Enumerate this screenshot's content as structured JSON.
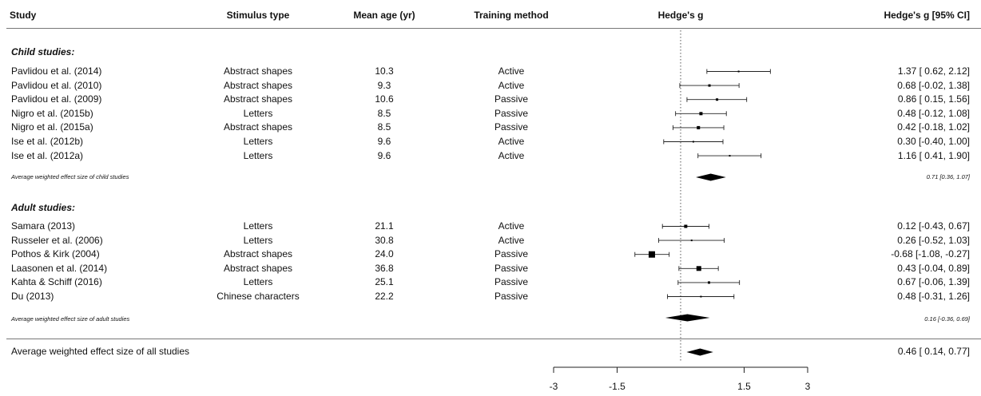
{
  "headers": {
    "study": "Study",
    "stimulus": "Stimulus type",
    "age": "Mean age (yr)",
    "method": "Training method",
    "plot": "Hedge's g",
    "ci": "Hedge's g [95% CI]"
  },
  "child_label": "Child studies:",
  "adult_label": "Adult studies:",
  "child_avg_label": "Average weighted effect size of child studies",
  "child_avg_ci": "0.71 [0.36, 1.07]",
  "adult_avg_label": "Average weighted effect size of adult studies",
  "adult_avg_ci": "0.16 [-0.36, 0.69]",
  "overall_label": "Average weighted effect size of all studies",
  "overall_ci": "0.46 [ 0.14,  0.77]",
  "child_rows": [
    {
      "study": "Pavlidou et al. (2014)",
      "stimulus": "Abstract shapes",
      "age": "10.3",
      "method": "Active",
      "ci": "1.37 [ 0.62,  2.12]"
    },
    {
      "study": "Pavlidou et al. (2010)",
      "stimulus": "Abstract shapes",
      "age": "9.3",
      "method": "Active",
      "ci": "0.68 [-0.02,  1.38]"
    },
    {
      "study": "Pavlidou et al. (2009)",
      "stimulus": "Abstract shapes",
      "age": "10.6",
      "method": "Passive",
      "ci": "0.86 [ 0.15,  1.56]"
    },
    {
      "study": "Nigro et al. (2015b)",
      "stimulus": "Letters",
      "age": "8.5",
      "method": "Passive",
      "ci": "0.48 [-0.12,  1.08]"
    },
    {
      "study": "Nigro et al. (2015a)",
      "stimulus": "Abstract shapes",
      "age": "8.5",
      "method": "Passive",
      "ci": "0.42 [-0.18,  1.02]"
    },
    {
      "study": "Ise et al. (2012b)",
      "stimulus": "Letters",
      "age": "9.6",
      "method": "Active",
      "ci": "0.30 [-0.40,  1.00]"
    },
    {
      "study": "Ise et al. (2012a)",
      "stimulus": "Letters",
      "age": "9.6",
      "method": "Active",
      "ci": "1.16 [ 0.41,  1.90]"
    }
  ],
  "adult_rows": [
    {
      "study": "Samara (2013)",
      "stimulus": "Letters",
      "age": "21.1",
      "method": "Active",
      "ci": "0.12 [-0.43,  0.67]"
    },
    {
      "study": "Russeler et al. (2006)",
      "stimulus": "Letters",
      "age": "30.8",
      "method": "Active",
      "ci": "0.26 [-0.52,  1.03]"
    },
    {
      "study": "Pothos & Kirk (2004)",
      "stimulus": "Abstract shapes",
      "age": "24.0",
      "method": "Passive",
      "ci": "-0.68 [-1.08, -0.27]"
    },
    {
      "study": "Laasonen et al. (2014)",
      "stimulus": "Abstract shapes",
      "age": "36.8",
      "method": "Passive",
      "ci": "0.43 [-0.04,  0.89]"
    },
    {
      "study": "Kahta & Schiff (2016)",
      "stimulus": "Letters",
      "age": "25.1",
      "method": "Passive",
      "ci": "0.67 [-0.06,  1.39]"
    },
    {
      "study": "Du (2013)",
      "stimulus": "Chinese characters",
      "age": "22.2",
      "method": "Passive",
      "ci": "0.48 [-0.31,  1.26]"
    }
  ],
  "chart_data": {
    "type": "forest",
    "xlabel": "",
    "xlim": [
      -3,
      3
    ],
    "reference_line": 0,
    "ticks": [
      -3,
      -1.5,
      1.5,
      3
    ],
    "tick_labels": [
      "-3",
      "-1.5",
      "1.5",
      "3"
    ],
    "groups": [
      {
        "name": "Child studies",
        "studies": [
          {
            "study": "Pavlidou et al. (2014)",
            "g": 1.37,
            "lo": 0.62,
            "hi": 2.12,
            "weight": 2
          },
          {
            "study": "Pavlidou et al. (2010)",
            "g": 0.68,
            "lo": -0.02,
            "hi": 1.38,
            "weight": 3
          },
          {
            "study": "Pavlidou et al. (2009)",
            "g": 0.86,
            "lo": 0.15,
            "hi": 1.56,
            "weight": 3
          },
          {
            "study": "Nigro et al. (2015b)",
            "g": 0.48,
            "lo": -0.12,
            "hi": 1.08,
            "weight": 4
          },
          {
            "study": "Nigro et al. (2015a)",
            "g": 0.42,
            "lo": -0.18,
            "hi": 1.02,
            "weight": 4
          },
          {
            "study": "Ise et al. (2012b)",
            "g": 0.3,
            "lo": -0.4,
            "hi": 1.0,
            "weight": 2
          },
          {
            "study": "Ise et al. (2012a)",
            "g": 1.16,
            "lo": 0.41,
            "hi": 1.9,
            "weight": 2
          }
        ],
        "summary": {
          "g": 0.71,
          "lo": 0.36,
          "hi": 1.07
        }
      },
      {
        "name": "Adult studies",
        "studies": [
          {
            "study": "Samara (2013)",
            "g": 0.12,
            "lo": -0.43,
            "hi": 0.67,
            "weight": 4
          },
          {
            "study": "Russeler et al. (2006)",
            "g": 0.26,
            "lo": -0.52,
            "hi": 1.03,
            "weight": 2
          },
          {
            "study": "Pothos & Kirk (2004)",
            "g": -0.68,
            "lo": -1.08,
            "hi": -0.27,
            "weight": 8
          },
          {
            "study": "Laasonen et al. (2014)",
            "g": 0.43,
            "lo": -0.04,
            "hi": 0.89,
            "weight": 6
          },
          {
            "study": "Kahta & Schiff (2016)",
            "g": 0.67,
            "lo": -0.06,
            "hi": 1.39,
            "weight": 3
          },
          {
            "study": "Du (2013)",
            "g": 0.48,
            "lo": -0.31,
            "hi": 1.26,
            "weight": 2
          }
        ],
        "summary": {
          "g": 0.16,
          "lo": -0.36,
          "hi": 0.69
        }
      }
    ],
    "overall": {
      "g": 0.46,
      "lo": 0.14,
      "hi": 0.77
    }
  }
}
